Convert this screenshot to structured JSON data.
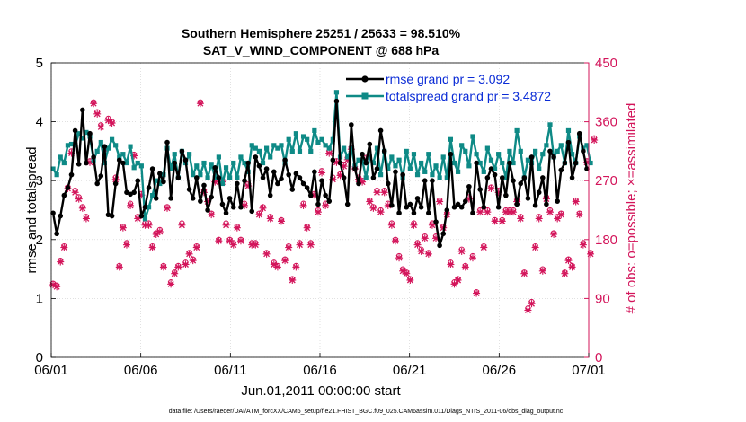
{
  "chart_data": {
    "type": "line",
    "title": "Southern Hemisphere 25251 / 25633 = 98.510%",
    "subtitle": "SAT_V_WIND_COMPONENT @ 688 hPa",
    "xlabel": "Jun.01,2011 00:00:00 start",
    "ylabel": "rmse and totalspread",
    "y2label": "# of obs: o=possible; ×=assimilated",
    "x_ticks": [
      "06/01",
      "06/06",
      "06/11",
      "06/16",
      "06/21",
      "06/26",
      "07/01"
    ],
    "y_ticks": [
      "0",
      "1",
      "2",
      "3",
      "4",
      "5"
    ],
    "y2_ticks": [
      "0",
      "90",
      "180",
      "270",
      "360",
      "450"
    ],
    "xlim": [
      0,
      30
    ],
    "ylim": [
      0,
      5
    ],
    "y2lim": [
      0,
      450
    ],
    "footer": "data file: /Users/raeder/DAI/ATM_forcXX/CAM6_setup/f.e21.FHIST_BGC.f09_025.CAM6assim.011/Diags_NTrS_2011-06/obs_diag_output.nc",
    "legend_position": "top-right",
    "colors": {
      "rmse": "#000000",
      "spread": "#0e8a86",
      "obs": "#d3145a",
      "legend_text": "#0a2bd6",
      "axis2": "#d3145a"
    },
    "series": [
      {
        "name": "rmse grand pr = 3.092",
        "values": [
          2.45,
          2.1,
          2.4,
          2.75,
          2.88,
          3.1,
          3.85,
          3.28,
          4.2,
          3.3,
          3.8,
          3.4,
          2.95,
          3.08,
          3.58,
          2.42,
          2.4,
          2.95,
          3.35,
          3.3,
          2.8,
          2.77,
          2.8,
          3.0,
          2.4,
          2.55,
          2.88,
          3.2,
          2.7,
          3.12,
          2.98,
          3.65,
          2.7,
          3.3,
          3.05,
          3.5,
          3.35,
          2.85,
          2.7,
          3.05,
          2.65,
          2.92,
          2.5,
          2.72,
          3.22,
          3.05,
          2.6,
          2.45,
          2.7,
          2.55,
          2.95,
          2.55,
          3.0,
          3.3,
          2.48,
          3.4,
          3.25,
          3.05,
          3.2,
          2.75,
          3.15,
          2.95,
          3.03,
          3.35,
          3.1,
          2.85,
          3.12,
          3.05,
          2.95,
          2.88,
          2.75,
          3.15,
          2.6,
          3.0,
          2.75,
          2.65,
          3.35,
          4.35,
          3.3,
          3.05,
          2.6,
          3.95,
          3.2,
          2.95,
          3.45,
          3.3,
          3.62,
          3.05,
          3.2,
          3.85,
          3.5,
          2.95,
          2.58,
          3.15,
          2.45,
          3.1,
          2.55,
          2.6,
          2.45,
          2.7,
          2.55,
          3.0,
          2.45,
          3.0,
          2.3,
          1.9,
          2.1,
          2.5,
          3.45,
          2.55,
          2.6,
          2.55,
          2.65,
          2.9,
          2.45,
          3.3,
          2.85,
          2.55,
          3.05,
          3.2,
          3.1,
          2.55,
          3.05,
          2.75,
          3.3,
          3.0,
          2.6,
          2.95,
          3.05,
          2.7,
          3.4,
          2.58,
          2.8,
          3.05,
          2.6,
          3.5,
          3.4,
          2.65,
          3.18,
          3.3,
          3.65,
          3.05,
          3.3,
          3.8,
          3.5,
          3.2
        ]
      },
      {
        "name": "totalspread grand pr = 3.4872",
        "values": [
          3.2,
          3.1,
          3.4,
          3.3,
          3.6,
          3.62,
          3.6,
          3.8,
          3.72,
          3.82,
          3.75,
          3.35,
          3.5,
          3.65,
          3.3,
          3.55,
          3.7,
          3.6,
          3.4,
          3.45,
          3.3,
          3.58,
          3.22,
          3.3,
          3.25,
          2.35,
          2.55,
          2.75,
          3.0,
          2.95,
          3.1,
          3.55,
          3.2,
          3.45,
          3.05,
          3.5,
          3.3,
          3.45,
          3.1,
          3.25,
          3.1,
          3.3,
          3.05,
          3.28,
          3.05,
          3.4,
          2.95,
          3.22,
          3.05,
          3.3,
          3.05,
          3.4,
          3.3,
          3.15,
          3.6,
          3.55,
          3.5,
          3.3,
          3.55,
          3.4,
          3.6,
          3.55,
          3.6,
          3.3,
          3.7,
          3.5,
          3.8,
          3.5,
          3.75,
          3.7,
          3.5,
          3.85,
          3.65,
          3.7,
          3.6,
          3.55,
          3.7,
          4.5,
          3.4,
          3.55,
          3.4,
          3.55,
          3.25,
          3.35,
          3.35,
          3.05,
          3.4,
          3.3,
          3.55,
          3.1,
          3.5,
          3.2,
          3.4,
          3.25,
          3.35,
          3.05,
          3.5,
          3.2,
          3.45,
          3.1,
          3.3,
          3.15,
          3.45,
          3.1,
          3.25,
          3.05,
          3.4,
          3.05,
          3.7,
          3.3,
          3.15,
          3.6,
          3.5,
          3.25,
          3.75,
          3.45,
          3.3,
          3.15,
          3.55,
          3.35,
          3.2,
          3.45,
          3.3,
          3.05,
          3.5,
          3.3,
          3.85,
          3.5,
          3.05,
          3.35,
          3.3,
          3.5,
          3.2,
          3.45,
          3.6,
          3.95,
          3.4,
          3.5,
          3.6,
          3.3,
          3.85,
          3.45,
          3.3,
          3.75,
          3.55,
          3.6,
          3.3
        ]
      },
      {
        "name": "obs possible",
        "axis": "y2",
        "values": [
          113,
          110,
          148,
          170,
          260,
          315,
          255,
          245,
          230,
          215,
          300,
          390,
          375,
          355,
          320,
          365,
          360,
          275,
          140,
          200,
          175,
          235,
          310,
          215,
          250,
          205,
          205,
          170,
          190,
          195,
          140,
          230,
          115,
          130,
          140,
          205,
          145,
          160,
          150,
          170,
          390,
          255,
          240,
          220,
          270,
          180,
          270,
          205,
          180,
          175,
          200,
          180,
          235,
          265,
          175,
          175,
          220,
          230,
          160,
          215,
          145,
          140,
          210,
          150,
          170,
          120,
          140,
          175,
          235,
          200,
          175,
          250,
          225,
          285,
          235,
          315,
          275,
          300,
          280,
          295,
          305,
          320,
          290,
          275,
          270,
          305,
          240,
          230,
          255,
          225,
          255,
          235,
          205,
          180,
          155,
          135,
          130,
          120,
          205,
          175,
          165,
          185,
          160,
          205,
          185,
          240,
          200,
          220,
          145,
          115,
          120,
          165,
          140,
          245,
          155,
          100,
          225,
          170,
          225,
          260,
          210,
          255,
          210,
          225,
          225,
          225,
          240,
          215,
          130,
          75,
          85,
          170,
          215,
          135,
          245,
          225,
          190,
          215,
          220,
          130,
          150,
          140,
          240,
          220,
          175,
          300,
          160,
          335
        ]
      },
      {
        "name": "obs assimilated",
        "axis": "y2",
        "values": [
          111,
          108,
          146,
          168,
          258,
          312,
          252,
          242,
          228,
          212,
          298,
          388,
          372,
          352,
          318,
          362,
          358,
          272,
          138,
          198,
          172,
          232,
          308,
          212,
          248,
          202,
          202,
          168,
          188,
          192,
          138,
          228,
          112,
          128,
          138,
          202,
          142,
          158,
          148,
          168,
          388,
          252,
          238,
          218,
          268,
          178,
          268,
          202,
          178,
          172,
          198,
          178,
          232,
          262,
          172,
          172,
          218,
          228,
          158,
          212,
          142,
          138,
          208,
          148,
          168,
          118,
          138,
          172,
          232,
          198,
          172,
          248,
          222,
          282,
          232,
          312,
          272,
          298,
          278,
          292,
          302,
          318,
          288,
          272,
          268,
          302,
          238,
          228,
          252,
          222,
          252,
          232,
          202,
          178,
          152,
          132,
          128,
          118,
          202,
          172,
          162,
          182,
          158,
          202,
          182,
          238,
          198,
          218,
          142,
          112,
          118,
          162,
          138,
          242,
          152,
          98,
          222,
          168,
          222,
          258,
          208,
          252,
          208,
          222,
          222,
          222,
          238,
          212,
          128,
          72,
          82,
          168,
          212,
          132,
          242,
          222,
          188,
          212,
          218,
          128,
          148,
          138,
          238,
          218,
          172,
          298,
          158,
          332
        ]
      }
    ]
  }
}
